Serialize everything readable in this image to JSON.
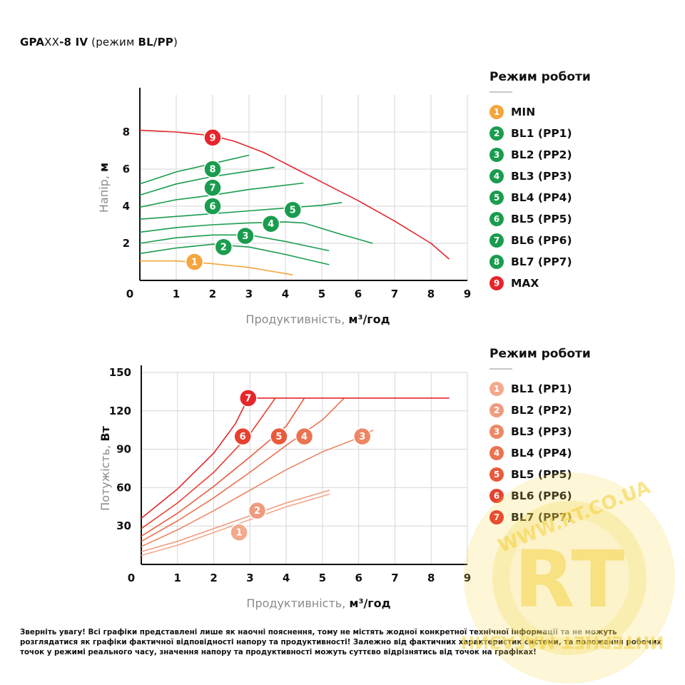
{
  "title": {
    "part1": "GPA",
    "part2": "XX",
    "part3": "-8 IV",
    "part4": " (режим ",
    "part5": "BL/PP",
    "part6": ")"
  },
  "colors": {
    "curve_green": "#1a9c4f",
    "curve_red": "#e5262b",
    "curve_orange": "#f5a53c",
    "grid": "#d6d6d6",
    "badge_min": "#f5a53c",
    "badge_green": "#1a9c4f",
    "badge_max": "#e5262b"
  },
  "chart_data": [
    {
      "type": "line",
      "title": "",
      "xlabel_regular": "Продуктивність, ",
      "xlabel_bold": "м³/год",
      "ylabel_regular": "Напір, ",
      "ylabel_bold": "м",
      "xlim": [
        0,
        9
      ],
      "ylim": [
        0,
        10
      ],
      "x_ticks": [
        "0",
        "1",
        "2",
        "3",
        "4",
        "5",
        "6",
        "7",
        "8",
        "9"
      ],
      "y_ticks": [
        "2",
        "4",
        "6",
        "8"
      ],
      "grid": true,
      "legend_position": "right",
      "series": [
        {
          "name": "MIN",
          "badge": "1",
          "color": "#f5a53c",
          "points": [
            [
              0,
              1.05
            ],
            [
              1.0,
              1.05
            ],
            [
              2.0,
              0.9
            ],
            [
              3.0,
              0.7
            ],
            [
              4.2,
              0.3
            ]
          ],
          "marker": [
            1.5,
            1.0
          ]
        },
        {
          "name": "BL1 (PP1)",
          "badge": "2",
          "color": "#1a9c4f",
          "points": [
            [
              0,
              1.45
            ],
            [
              1,
              1.75
            ],
            [
              2,
              1.95
            ],
            [
              3,
              1.8
            ],
            [
              4,
              1.4
            ],
            [
              5.2,
              0.85
            ]
          ],
          "marker": [
            2.3,
            1.8
          ]
        },
        {
          "name": "BL2 (PP2)",
          "badge": "3",
          "color": "#1a9c4f",
          "points": [
            [
              0,
              2.0
            ],
            [
              1,
              2.3
            ],
            [
              2,
              2.45
            ],
            [
              3,
              2.45
            ],
            [
              4,
              2.1
            ],
            [
              5.2,
              1.6
            ]
          ],
          "marker": [
            2.9,
            2.4
          ]
        },
        {
          "name": "BL3 (PP3)",
          "badge": "4",
          "color": "#1a9c4f",
          "points": [
            [
              0,
              2.6
            ],
            [
              1,
              2.85
            ],
            [
              2,
              3.0
            ],
            [
              3,
              3.1
            ],
            [
              4,
              3.15
            ],
            [
              4.5,
              3.1
            ],
            [
              5.5,
              2.5
            ],
            [
              6.4,
              2.0
            ]
          ],
          "marker": [
            3.6,
            3.05
          ]
        },
        {
          "name": "BL4 (PP4)",
          "badge": "5",
          "color": "#1a9c4f",
          "points": [
            [
              0,
              3.3
            ],
            [
              1,
              3.45
            ],
            [
              2,
              3.6
            ],
            [
              3,
              3.75
            ],
            [
              4,
              3.9
            ],
            [
              5,
              4.05
            ],
            [
              5.55,
              4.2
            ]
          ],
          "marker": [
            4.2,
            3.8
          ]
        },
        {
          "name": "BL5 (PP5)",
          "badge": "6",
          "color": "#1a9c4f",
          "points": [
            [
              0,
              3.95
            ],
            [
              1,
              4.35
            ],
            [
              2,
              4.6
            ],
            [
              3,
              4.9
            ],
            [
              4.5,
              5.25
            ]
          ],
          "marker": [
            2.0,
            4.0
          ]
        },
        {
          "name": "BL6 (PP6)",
          "badge": "7",
          "color": "#1a9c4f",
          "points": [
            [
              0,
              4.6
            ],
            [
              1,
              5.2
            ],
            [
              2,
              5.6
            ],
            [
              3.7,
              6.1
            ]
          ],
          "marker": [
            2.0,
            5.0
          ]
        },
        {
          "name": "BL7 (PP7)",
          "badge": "8",
          "color": "#1a9c4f",
          "points": [
            [
              0,
              5.2
            ],
            [
              1,
              5.85
            ],
            [
              2,
              6.3
            ],
            [
              3.0,
              6.75
            ]
          ],
          "marker": [
            2.0,
            6.0
          ]
        },
        {
          "name": "MAX",
          "badge": "9",
          "color": "#e5262b",
          "points": [
            [
              0,
              8.1
            ],
            [
              1,
              8.0
            ],
            [
              2,
              7.8
            ],
            [
              2.6,
              7.5
            ],
            [
              3.4,
              6.9
            ],
            [
              4.2,
              6.1
            ],
            [
              5.0,
              5.3
            ],
            [
              6.0,
              4.3
            ],
            [
              7.0,
              3.2
            ],
            [
              8.0,
              2.0
            ],
            [
              8.5,
              1.15
            ]
          ],
          "marker": [
            2.0,
            7.7
          ]
        }
      ]
    },
    {
      "type": "line",
      "title": "",
      "xlabel_regular": "Продуктивність, ",
      "xlabel_bold": "м³/год",
      "ylabel_regular": "Потужість, ",
      "ylabel_bold": "Вт",
      "xlim": [
        0,
        9
      ],
      "ylim": [
        0,
        150
      ],
      "x_ticks": [
        "0",
        "1",
        "2",
        "3",
        "4",
        "5",
        "6",
        "7",
        "8",
        "9"
      ],
      "y_ticks": [
        "30",
        "60",
        "90",
        "120",
        "150"
      ],
      "grid": true,
      "legend_position": "right",
      "series": [
        {
          "name": "BL1 (PP1)",
          "badge": "1",
          "color": "#f2a98c",
          "points": [
            [
              0,
              7
            ],
            [
              1,
              15
            ],
            [
              2,
              25
            ],
            [
              3,
              35
            ],
            [
              4,
              45
            ],
            [
              5.2,
              55
            ]
          ],
          "marker": [
            2.7,
            25
          ]
        },
        {
          "name": "BL2 (PP2)",
          "badge": "2",
          "color": "#ef9b7f",
          "points": [
            [
              0,
              10
            ],
            [
              1,
              18
            ],
            [
              2,
              28
            ],
            [
              3,
              38
            ],
            [
              4,
              48
            ],
            [
              5.2,
              58
            ]
          ],
          "marker": [
            3.2,
            42
          ]
        },
        {
          "name": "BL3 (PP3)",
          "badge": "3",
          "color": "#ec8866",
          "points": [
            [
              0,
              14
            ],
            [
              1,
              27
            ],
            [
              2,
              42
            ],
            [
              3,
              58
            ],
            [
              4,
              74
            ],
            [
              5,
              88
            ],
            [
              6,
              99
            ],
            [
              6.4,
              105
            ]
          ],
          "marker": [
            6.1,
            100
          ]
        },
        {
          "name": "BL4 (PP4)",
          "badge": "4",
          "color": "#ea7350",
          "points": [
            [
              0,
              18
            ],
            [
              1,
              34
            ],
            [
              2,
              52
            ],
            [
              3,
              72
            ],
            [
              4,
              93
            ],
            [
              5,
              113
            ],
            [
              5.6,
              130
            ]
          ],
          "marker": [
            4.5,
            100
          ]
        },
        {
          "name": "BL5 (PP5)",
          "badge": "5",
          "color": "#e85a3b",
          "points": [
            [
              0,
              22
            ],
            [
              1,
              40
            ],
            [
              2,
              61
            ],
            [
              3,
              84
            ],
            [
              4.0,
              108
            ],
            [
              4.5,
              130
            ]
          ],
          "marker": [
            3.8,
            100
          ]
        },
        {
          "name": "BL6 (PP6)",
          "badge": "6",
          "color": "#e6412f",
          "points": [
            [
              0,
              28
            ],
            [
              1,
              48
            ],
            [
              2,
              72
            ],
            [
              3,
              102
            ],
            [
              3.7,
              130
            ]
          ],
          "marker": [
            2.8,
            100
          ]
        },
        {
          "name": "BL7 (PP7)",
          "badge": "7",
          "color": "#e5262b",
          "points": [
            [
              0,
              36
            ],
            [
              1,
              59
            ],
            [
              2,
              87
            ],
            [
              2.6,
              110
            ],
            [
              2.95,
              130
            ],
            [
              8.5,
              130
            ]
          ],
          "marker": [
            2.95,
            130
          ]
        }
      ]
    }
  ],
  "legend_head": {
    "title": "Режим роботи",
    "items": [
      {
        "badge": "1",
        "label": "MIN",
        "color": "#f5a53c"
      },
      {
        "badge": "2",
        "label": "BL1 (PP1)",
        "color": "#1a9c4f"
      },
      {
        "badge": "3",
        "label": "BL2 (PP2)",
        "color": "#1a9c4f"
      },
      {
        "badge": "4",
        "label": "BL3 (PP3)",
        "color": "#1a9c4f"
      },
      {
        "badge": "5",
        "label": "BL4 (PP4)",
        "color": "#1a9c4f"
      },
      {
        "badge": "6",
        "label": "BL5 (PP5)",
        "color": "#1a9c4f"
      },
      {
        "badge": "7",
        "label": "BL6 (PP6)",
        "color": "#1a9c4f"
      },
      {
        "badge": "8",
        "label": "BL7 (PP7)",
        "color": "#1a9c4f"
      },
      {
        "badge": "9",
        "label": "MAX",
        "color": "#e5262b"
      }
    ]
  },
  "legend_power": {
    "title": "Режим роботи",
    "items": [
      {
        "badge": "1",
        "label": "BL1 (PP1)",
        "color": "#f2a98c"
      },
      {
        "badge": "2",
        "label": "BL2 (PP2)",
        "color": "#ef9b7f"
      },
      {
        "badge": "3",
        "label": "BL3 (PP3)",
        "color": "#ec8866"
      },
      {
        "badge": "4",
        "label": "BL4 (PP4)",
        "color": "#ea7350"
      },
      {
        "badge": "5",
        "label": "BL5 (PP5)",
        "color": "#e85a3b"
      },
      {
        "badge": "6",
        "label": "BL6 (PP6)",
        "color": "#e6412f"
      },
      {
        "badge": "7",
        "label": "BL7 (PP7)",
        "color": "#e5262b"
      }
    ]
  },
  "footnote": "Зверніть увагу! Всі графіки представлені лише як наочні пояснення, тому не містять жодної конкретної технічної інформації та не можуть розглядатися як графіки фактичної відповідності напору та продуктивності! Залежно від фактичних характеристик системи, та положення робочих точок у режимі реального часу, значення напору та продуктивності можуть суттєво відрізнятись від точок на графіках!",
  "watermark": {
    "letters": "RT",
    "top_text": "WWW.RT.CO.UA",
    "bottom_text": "ИНТЕРНЕТ МАГАЗИН"
  }
}
